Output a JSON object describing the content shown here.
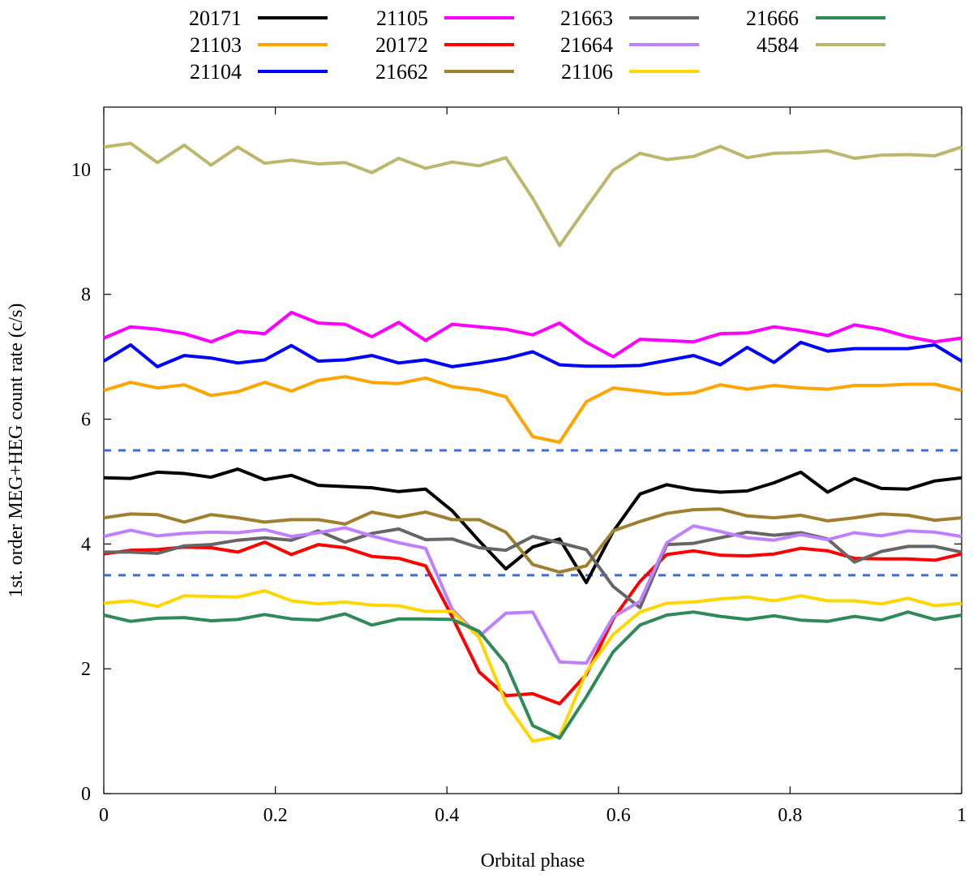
{
  "chart_data": {
    "type": "line",
    "title": "",
    "xlabel": "Orbital phase",
    "ylabel": "1st. order MEG+HEG count rate (c/s)",
    "xlim": [
      0,
      1
    ],
    "ylim": [
      0,
      11
    ],
    "xticks": [
      0,
      0.2,
      0.4,
      0.6,
      0.8,
      1
    ],
    "xtick_labels": [
      "0",
      "0.2",
      "0.4",
      "0.6",
      "0.8",
      "1"
    ],
    "yticks": [
      0,
      2,
      4,
      6,
      8,
      10
    ],
    "ytick_labels": [
      "0",
      "2",
      "4",
      "6",
      "8",
      "10"
    ],
    "grid": false,
    "legend_position": "top, outside plot",
    "x": [
      0,
      0.03125,
      0.0625,
      0.09375,
      0.125,
      0.15625,
      0.1875,
      0.21875,
      0.25,
      0.28125,
      0.3125,
      0.34375,
      0.375,
      0.40625,
      0.4375,
      0.46875,
      0.5,
      0.53125,
      0.5625,
      0.59375,
      0.625,
      0.65625,
      0.6875,
      0.71875,
      0.75,
      0.78125,
      0.8125,
      0.84375,
      0.875,
      0.90625,
      0.9375,
      0.96875,
      1
    ],
    "reference_lines": [
      {
        "y": 5.5,
        "style": "dashed",
        "color": "#4169e1"
      },
      {
        "y": 3.5,
        "style": "dashed",
        "color": "#4169e1"
      }
    ],
    "series": [
      {
        "name": "20171",
        "color": "#000000",
        "values": [
          5.06,
          5.05,
          5.15,
          5.13,
          5.07,
          5.2,
          5.03,
          5.1,
          4.94,
          4.92,
          4.9,
          4.84,
          4.88,
          4.53,
          4.05,
          3.6,
          3.95,
          4.08,
          3.38,
          4.2,
          4.8,
          4.95,
          4.87,
          4.83,
          4.85,
          4.98,
          5.15,
          4.83,
          5.05,
          4.89,
          4.88,
          5.01,
          5.06
        ]
      },
      {
        "name": "21103",
        "color": "#ffa500",
        "values": [
          6.46,
          6.59,
          6.5,
          6.55,
          6.38,
          6.44,
          6.59,
          6.45,
          6.62,
          6.68,
          6.59,
          6.57,
          6.66,
          6.52,
          6.47,
          6.36,
          5.72,
          5.63,
          6.28,
          6.5,
          6.45,
          6.4,
          6.42,
          6.55,
          6.48,
          6.54,
          6.5,
          6.48,
          6.54,
          6.54,
          6.56,
          6.56,
          6.46
        ]
      },
      {
        "name": "21104",
        "color": "#0000ff",
        "values": [
          6.93,
          7.19,
          6.84,
          7.02,
          6.98,
          6.9,
          6.95,
          7.18,
          6.93,
          6.95,
          7.02,
          6.9,
          6.95,
          6.84,
          6.9,
          6.97,
          7.08,
          6.87,
          6.85,
          6.85,
          6.86,
          6.94,
          7.02,
          6.87,
          7.15,
          6.91,
          7.23,
          7.09,
          7.13,
          7.13,
          7.13,
          7.19,
          6.93
        ]
      },
      {
        "name": "21105",
        "color": "#ff00ff",
        "values": [
          7.3,
          7.48,
          7.44,
          7.37,
          7.24,
          7.41,
          7.37,
          7.71,
          7.54,
          7.52,
          7.32,
          7.55,
          7.26,
          7.52,
          7.48,
          7.44,
          7.35,
          7.54,
          7.23,
          7.0,
          7.28,
          7.26,
          7.24,
          7.37,
          7.38,
          7.48,
          7.42,
          7.34,
          7.51,
          7.44,
          7.32,
          7.24,
          7.3
        ]
      },
      {
        "name": "20172",
        "color": "#ff0000",
        "values": [
          3.84,
          3.9,
          3.91,
          3.95,
          3.94,
          3.87,
          4.03,
          3.83,
          3.99,
          3.94,
          3.8,
          3.77,
          3.65,
          2.83,
          1.95,
          1.57,
          1.6,
          1.44,
          1.91,
          2.8,
          3.4,
          3.83,
          3.89,
          3.82,
          3.81,
          3.84,
          3.93,
          3.89,
          3.77,
          3.76,
          3.76,
          3.74,
          3.84
        ]
      },
      {
        "name": "21662",
        "color": "#a08030",
        "values": [
          4.42,
          4.48,
          4.47,
          4.35,
          4.47,
          4.42,
          4.35,
          4.39,
          4.39,
          4.32,
          4.51,
          4.43,
          4.51,
          4.39,
          4.39,
          4.19,
          3.67,
          3.55,
          3.65,
          4.21,
          4.36,
          4.49,
          4.55,
          4.56,
          4.45,
          4.42,
          4.46,
          4.37,
          4.42,
          4.48,
          4.46,
          4.38,
          4.42
        ]
      },
      {
        "name": "21663",
        "color": "#666666",
        "values": [
          3.87,
          3.87,
          3.85,
          3.97,
          3.99,
          4.06,
          4.1,
          4.06,
          4.21,
          4.03,
          4.17,
          4.24,
          4.07,
          4.08,
          3.94,
          3.9,
          4.12,
          4.02,
          3.91,
          3.32,
          2.98,
          3.99,
          4.01,
          4.1,
          4.19,
          4.14,
          4.18,
          4.08,
          3.71,
          3.88,
          3.96,
          3.96,
          3.87
        ]
      },
      {
        "name": "21664",
        "color": "#bf80ff",
        "values": [
          4.12,
          4.22,
          4.13,
          4.17,
          4.19,
          4.18,
          4.23,
          4.12,
          4.18,
          4.26,
          4.13,
          4.02,
          3.93,
          2.95,
          2.52,
          2.89,
          2.91,
          2.11,
          2.09,
          2.83,
          3.08,
          4.02,
          4.29,
          4.2,
          4.1,
          4.06,
          4.15,
          4.07,
          4.18,
          4.13,
          4.21,
          4.19,
          4.12
        ]
      },
      {
        "name": "21106",
        "color": "#ffd700",
        "values": [
          3.05,
          3.09,
          3.0,
          3.17,
          3.16,
          3.15,
          3.25,
          3.09,
          3.04,
          3.07,
          3.02,
          3.01,
          2.92,
          2.92,
          2.5,
          1.45,
          0.84,
          0.92,
          1.95,
          2.55,
          2.91,
          3.05,
          3.07,
          3.12,
          3.15,
          3.09,
          3.17,
          3.09,
          3.09,
          3.04,
          3.13,
          3.01,
          3.05
        ]
      },
      {
        "name": "21666",
        "color": "#2e8b57",
        "values": [
          2.86,
          2.76,
          2.81,
          2.82,
          2.77,
          2.79,
          2.87,
          2.8,
          2.78,
          2.88,
          2.7,
          2.8,
          2.8,
          2.79,
          2.6,
          2.08,
          1.09,
          0.89,
          1.55,
          2.27,
          2.7,
          2.86,
          2.91,
          2.84,
          2.79,
          2.85,
          2.78,
          2.76,
          2.84,
          2.78,
          2.91,
          2.79,
          2.86
        ]
      },
      {
        "name": "4584",
        "color": "#bdb76b",
        "values": [
          10.36,
          10.42,
          10.11,
          10.39,
          10.07,
          10.36,
          10.1,
          10.15,
          10.09,
          10.11,
          9.95,
          10.18,
          10.02,
          10.12,
          10.06,
          10.19,
          9.54,
          8.78,
          9.39,
          9.99,
          10.26,
          10.16,
          10.21,
          10.37,
          10.19,
          10.26,
          10.27,
          10.3,
          10.18,
          10.23,
          10.24,
          10.22,
          10.36
        ]
      }
    ]
  }
}
